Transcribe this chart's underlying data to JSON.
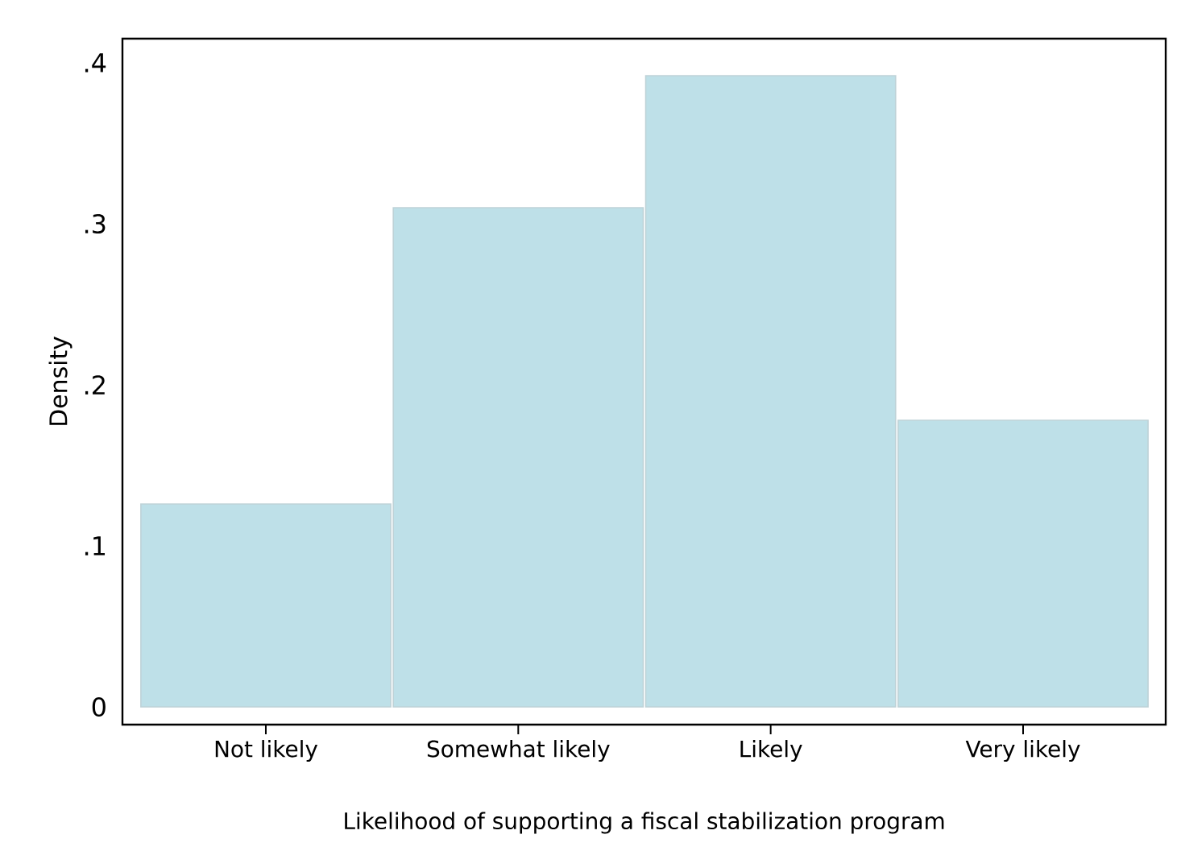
{
  "chart_data": {
    "type": "bar",
    "categories": [
      "Not likely",
      "Somewhat likely",
      "Likely",
      "Very likely"
    ],
    "values": [
      0.126,
      0.31,
      0.392,
      0.178
    ],
    "color": "#bee0e8",
    "xlabel": "Likelihood of supporting a fiscal stabilization program",
    "ylabel": "Density",
    "ylim": [
      -0.011,
      0.415
    ],
    "yticks": [
      0,
      {
        "value": 0.1,
        "label": ".1"
      },
      {
        "value": 0.2,
        "label": ".2"
      },
      {
        "value": 0.3,
        "label": ".3"
      },
      {
        "value": 0.4,
        "label": ".4"
      }
    ],
    "grid": false
  }
}
